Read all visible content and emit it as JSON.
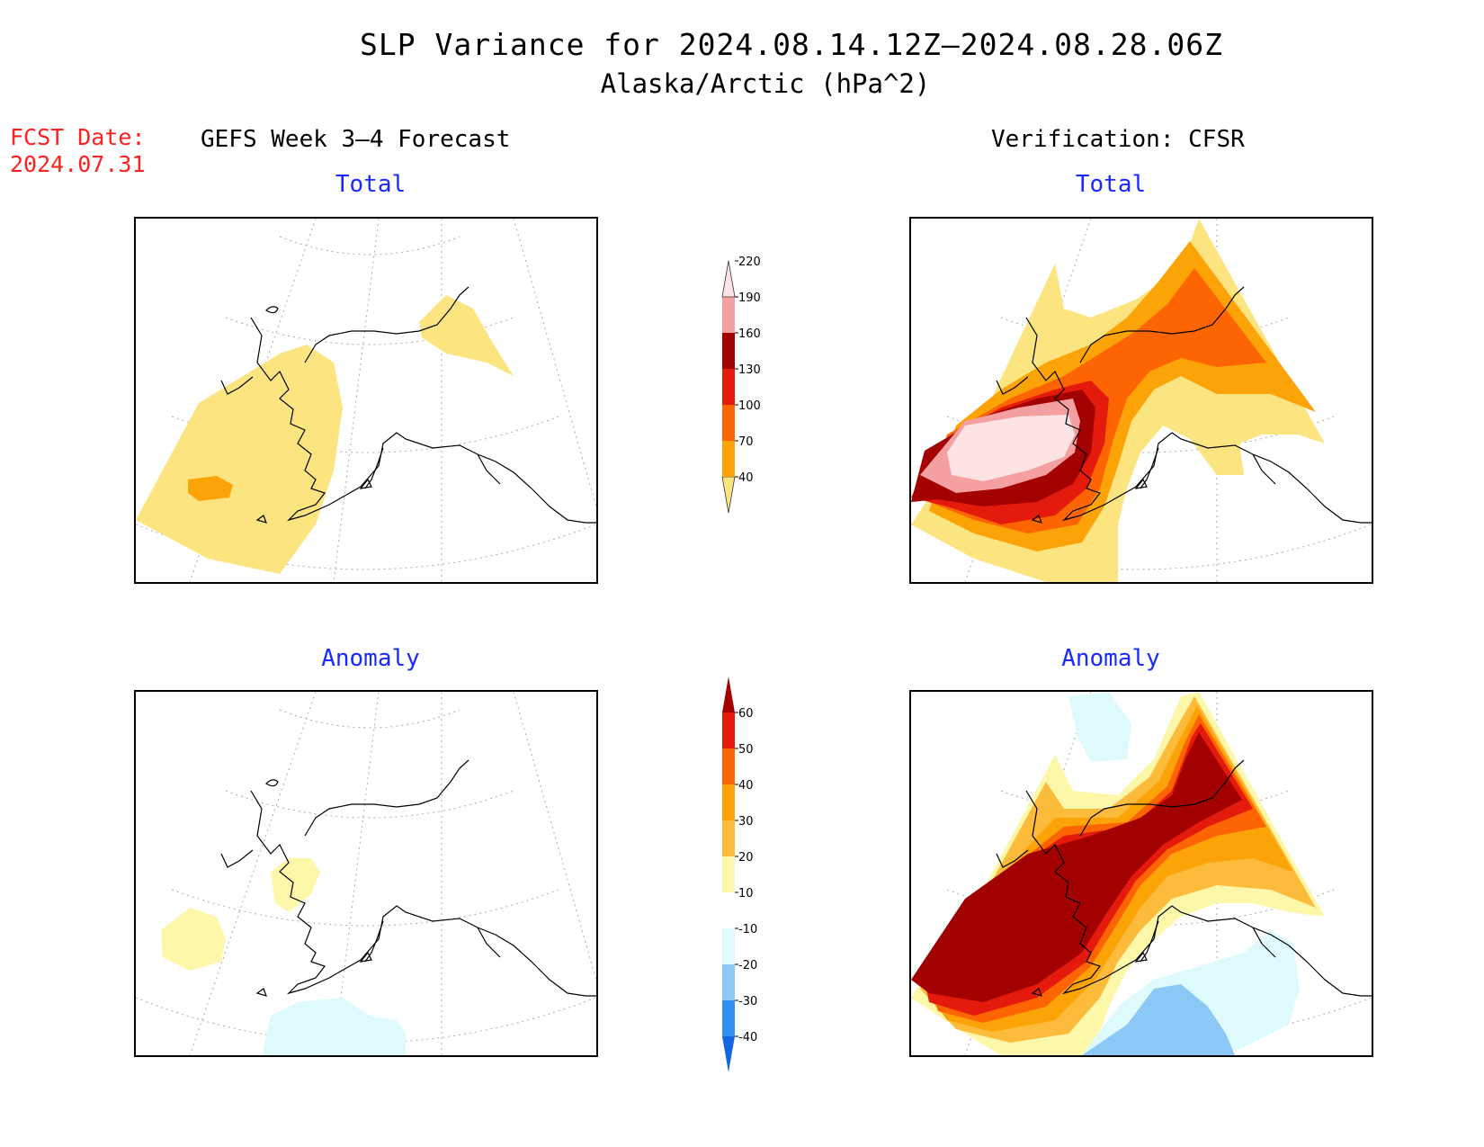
{
  "title": "SLP Variance for 2024.08.14.12Z–2024.08.28.06Z",
  "subtitle": "Alaska/Arctic (hPa^2)",
  "fcst": {
    "label": "FCST Date:",
    "value": "2024.07.31"
  },
  "columns": {
    "left": "GEFS Week 3–4 Forecast",
    "right": "Verification: CFSR"
  },
  "panels": {
    "forecast_total": "Total",
    "verification_total": "Total",
    "forecast_anomaly": "Anomaly",
    "verification_anomaly": "Anomaly"
  },
  "colorbars": {
    "total": {
      "levels": [
        "40",
        "70",
        "100",
        "130",
        "160",
        "190",
        "220"
      ],
      "colors": [
        "#fce580",
        "#fca308",
        "#fc6502",
        "#e41a0c",
        "#a30000",
        "#f4a0a0",
        "#fde3e3"
      ]
    },
    "anomaly": {
      "levels": [
        "-40",
        "-30",
        "-20",
        "-10",
        "10",
        "20",
        "30",
        "40",
        "50",
        "60"
      ],
      "colors": [
        "#1565e0",
        "#2f8ff0",
        "#8cc8f5",
        "#dffafd",
        "#ffffff",
        "#fdf7aa",
        "#fdbb3c",
        "#fca308",
        "#fc6502",
        "#e41a0c",
        "#a30000"
      ]
    }
  }
}
